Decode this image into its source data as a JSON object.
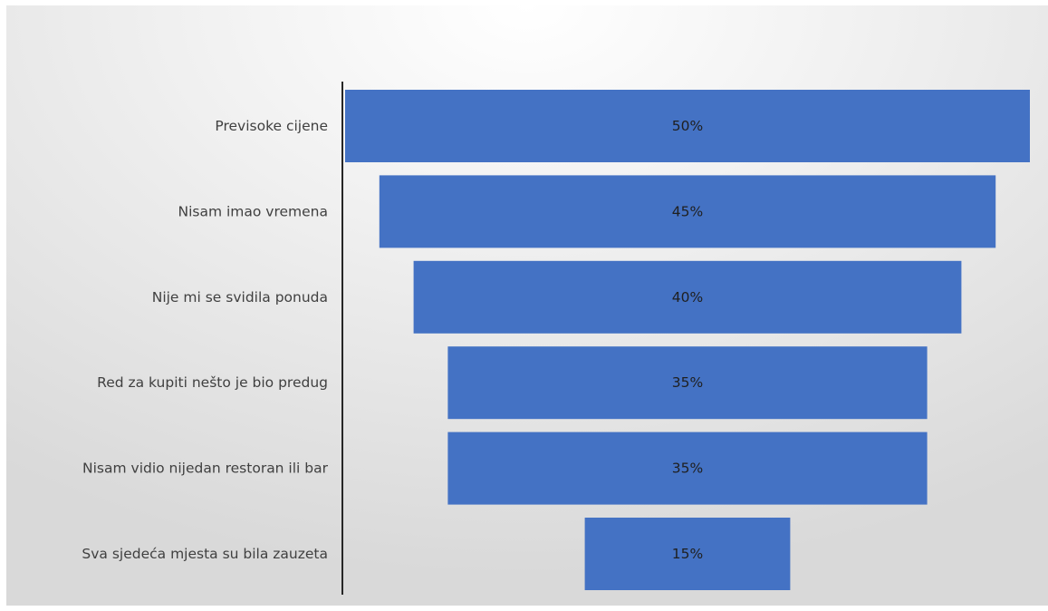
{
  "chart_data": {
    "type": "bar",
    "subtype": "funnel",
    "title": "",
    "xlabel": "",
    "ylabel": "",
    "categories": [
      "Previsoke cijene",
      "Nisam imao vremena",
      "Nije mi se svidila ponuda",
      "Red za kupiti nešto je bio predug",
      "Nisam vidio nijedan restoran ili bar",
      "Sva sjedeća mjesta su bila zauzeta"
    ],
    "values": [
      50,
      45,
      40,
      35,
      35,
      15
    ],
    "labels": [
      "50%",
      "45%",
      "40%",
      "35%",
      "35%",
      "15%"
    ],
    "unit": "%",
    "grid": false,
    "legend": "none",
    "colors": {
      "bar": "#4472C4",
      "axis": "#262626",
      "category_text": "#404040",
      "data_label_text": "#1f1f1f"
    }
  }
}
